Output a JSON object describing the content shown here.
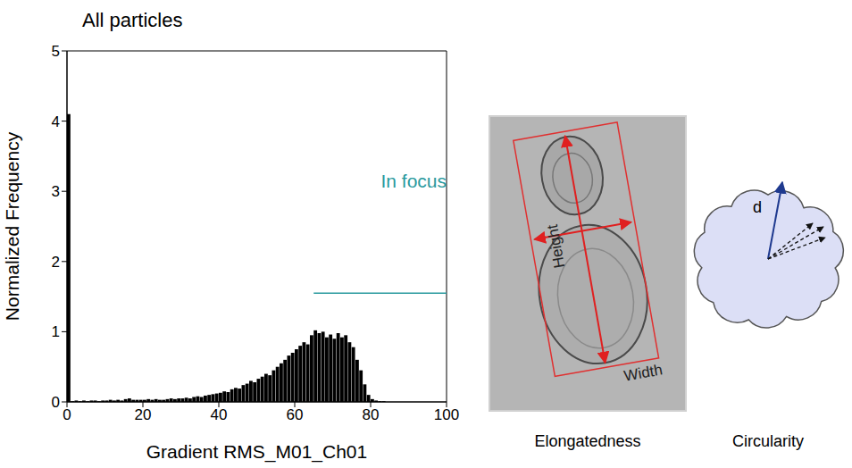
{
  "chart_data": {
    "type": "histogram",
    "title": "All particles",
    "x_label": "Gradient RMS_M01_Ch01",
    "y_label": "Normalized Frequency",
    "bins": [
      0,
      1,
      2,
      3,
      4,
      5,
      6,
      7,
      8,
      9,
      10,
      11,
      12,
      13,
      14,
      15,
      16,
      17,
      18,
      19,
      20,
      21,
      22,
      23,
      24,
      25,
      26,
      27,
      28,
      29,
      30,
      31,
      32,
      33,
      34,
      35,
      36,
      37,
      38,
      39,
      40,
      41,
      42,
      43,
      44,
      45,
      46,
      47,
      48,
      49,
      50,
      51,
      52,
      53,
      54,
      55,
      56,
      57,
      58,
      59,
      60,
      61,
      62,
      63,
      64,
      65,
      66,
      67,
      68,
      69,
      70,
      71,
      72,
      73,
      74,
      75,
      76,
      77,
      78,
      79,
      80,
      81,
      82,
      83,
      84,
      85,
      86,
      87,
      88,
      89,
      90,
      91,
      92,
      93,
      94,
      95,
      96,
      97,
      98,
      99,
      100
    ],
    "counts": [
      4.1,
      0.01,
      0.02,
      0.01,
      0.02,
      0.01,
      0.02,
      0.02,
      0.01,
      0.02,
      0.02,
      0.03,
      0.02,
      0.03,
      0.02,
      0.04,
      0.05,
      0.03,
      0.03,
      0.03,
      0.03,
      0.04,
      0.03,
      0.04,
      0.03,
      0.03,
      0.04,
      0.05,
      0.04,
      0.05,
      0.05,
      0.06,
      0.05,
      0.07,
      0.08,
      0.07,
      0.09,
      0.1,
      0.11,
      0.12,
      0.13,
      0.15,
      0.14,
      0.18,
      0.2,
      0.19,
      0.24,
      0.26,
      0.3,
      0.28,
      0.33,
      0.36,
      0.4,
      0.38,
      0.45,
      0.5,
      0.55,
      0.6,
      0.66,
      0.7,
      0.75,
      0.8,
      0.85,
      0.82,
      0.95,
      1.02,
      0.98,
      1.0,
      0.92,
      0.96,
      0.9,
      0.98,
      0.92,
      0.95,
      0.85,
      0.78,
      0.6,
      0.45,
      0.25,
      0.1,
      0.04,
      0.02,
      0.01,
      0.01,
      0,
      0,
      0,
      0,
      0,
      0,
      0,
      0,
      0,
      0,
      0,
      0,
      0,
      0,
      0,
      0
    ],
    "color": "#000000",
    "xlim": [
      0,
      100
    ],
    "ylim": [
      0,
      5
    ],
    "xticks": [
      0,
      20,
      40,
      60,
      80,
      100
    ],
    "yticks": [
      0,
      1,
      2,
      3,
      4,
      5
    ],
    "gate": {
      "label": "In focus",
      "x": [
        65,
        100
      ],
      "y": 1.55,
      "color": "#2a9a9e"
    }
  },
  "diagrams": [
    {
      "caption": "Elongatedness",
      "labels": [
        "Height",
        "Width"
      ]
    },
    {
      "caption": "Circularity",
      "labels": [
        "d"
      ]
    }
  ]
}
